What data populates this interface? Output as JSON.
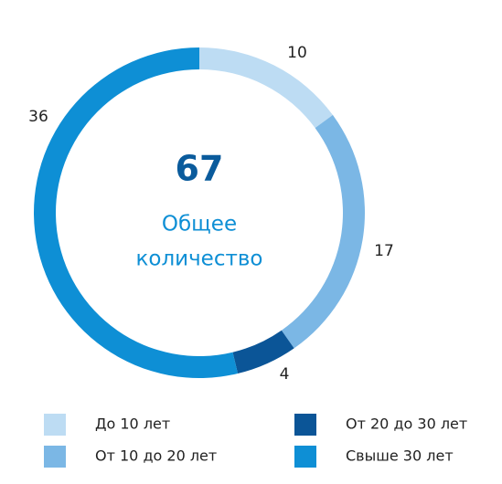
{
  "chart_data": {
    "type": "donut",
    "center_value": 67,
    "center_label": [
      "Общее",
      "количество"
    ],
    "categories": [
      "До 10 лет",
      "От 10 до 20 лет",
      "От 20 до 30 лет",
      "Свыше 30 лет"
    ],
    "values": [
      10,
      17,
      4,
      36
    ],
    "colors": [
      "#bddcf3",
      "#7bb7e5",
      "#0b5597",
      "#0e8fd5"
    ]
  }
}
